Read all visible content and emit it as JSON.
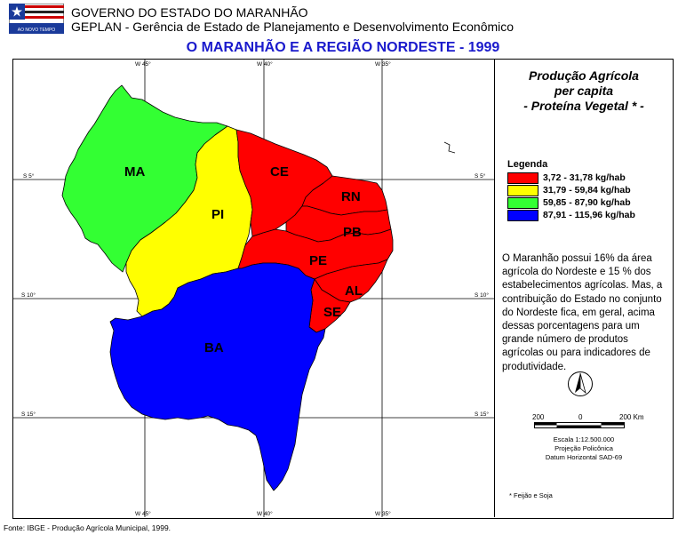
{
  "header": {
    "line1": "GOVERNO DO ESTADO DO MARANHÃO",
    "line2": "GEPLAN - Gerência de Estado de Planejamento e Desenvolvimento Econômico",
    "flag_caption": "AO NOVO TEMPO"
  },
  "title": "O MARANHÃO E A REGIÃO NORDESTE - 1999",
  "panel": {
    "title_lines": [
      "Produção Agrícola",
      "per capita",
      "- Proteína Vegetal * -"
    ],
    "legend_title": "Legenda",
    "legend": [
      {
        "label": "3,72 - 31,78 kg/hab",
        "color": "#ff0000"
      },
      {
        "label": "31,79 - 59,84 kg/hab",
        "color": "#ffff00"
      },
      {
        "label": "59,85 - 87,90 kg/hab",
        "color": "#33ff33"
      },
      {
        "label": "87,91 - 115,96 kg/hab",
        "color": "#0000ff"
      }
    ],
    "note": "O Maranhão possui 16% da área agrícola do Nordeste e 15 % dos estabelecimentos agrícolas. Mas, a contribuição do Estado no conjunto do Nordeste fica, em geral, acima dessas porcentagens para um grande número de produtos agrícolas ou para indicadores de produtividade.",
    "scale": {
      "left": "200",
      "mid": "0",
      "right": "200 Km"
    },
    "map_info": [
      "Escala 1:12.500.000",
      "Projeção Policônica",
      "Datum Horizontal SAD-69"
    ],
    "footnote": "* Feijão e Soja"
  },
  "grid": {
    "lon_labels": [
      "W 45°",
      "W 40°",
      "W 35°"
    ],
    "lat_labels": [
      "S 5°",
      "S 10°",
      "S 15°"
    ]
  },
  "regions": [
    {
      "name": "MA",
      "color": "#33ff33"
    },
    {
      "name": "PI",
      "color": "#ffff00"
    },
    {
      "name": "CE",
      "color": "#ff0000"
    },
    {
      "name": "RN",
      "color": "#ff0000"
    },
    {
      "name": "PB",
      "color": "#ff0000"
    },
    {
      "name": "PE",
      "color": "#ff0000"
    },
    {
      "name": "AL",
      "color": "#ff0000"
    },
    {
      "name": "SE",
      "color": "#ff0000"
    },
    {
      "name": "BA",
      "color": "#0000ff"
    }
  ],
  "source": "Fonte: IBGE - Produção Agrícola Municipal, 1999."
}
